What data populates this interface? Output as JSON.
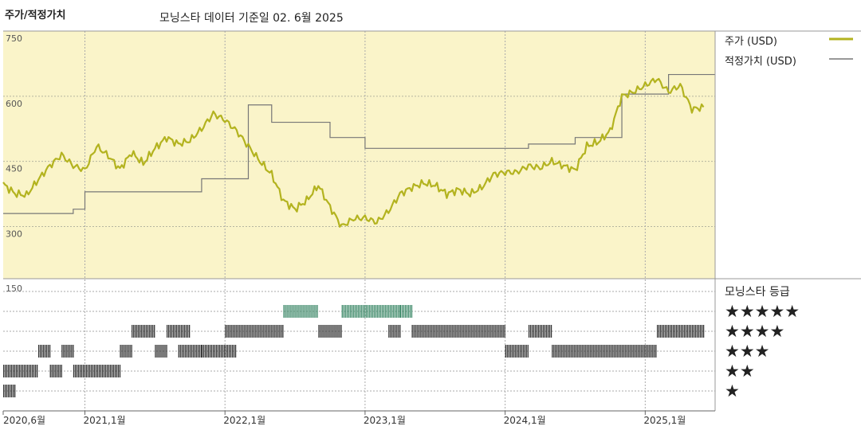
{
  "chart_data": {
    "type": "line",
    "title": "주가/적정가치",
    "subtitle": "모닝스타 데이터 기준일 02. 6월 2025",
    "x_ticks": [
      "2020,6월",
      "2021,1월",
      "2022,1월",
      "2023,1월",
      "2024,1월",
      "2025,1월"
    ],
    "x_range": [
      "2020-06",
      "2025-06"
    ],
    "y_ticks": [
      750,
      600,
      450,
      300
    ],
    "ylim": [
      180,
      750
    ],
    "grid": true,
    "legend_position": "right",
    "colors": {
      "price": "#b3b31f",
      "fair": "#777777",
      "panel": "#faf4c9",
      "star5": "#3f8a6a",
      "bars": "#333333"
    },
    "series": [
      {
        "name": "주가 (USD)",
        "x": [
          "2020-06",
          "2020-07",
          "2020-08",
          "2020-09",
          "2020-10",
          "2020-11",
          "2020-12",
          "2021-01",
          "2021-02",
          "2021-03",
          "2021-04",
          "2021-05",
          "2021-06",
          "2021-07",
          "2021-08",
          "2021-09",
          "2021-10",
          "2021-11",
          "2021-12",
          "2022-01",
          "2022-02",
          "2022-03",
          "2022-04",
          "2022-05",
          "2022-06",
          "2022-07",
          "2022-08",
          "2022-09",
          "2022-10",
          "2022-11",
          "2022-12",
          "2023-01",
          "2023-02",
          "2023-03",
          "2023-04",
          "2023-05",
          "2023-06",
          "2023-07",
          "2023-08",
          "2023-09",
          "2023-10",
          "2023-11",
          "2023-12",
          "2024-01",
          "2024-02",
          "2024-03",
          "2024-04",
          "2024-05",
          "2024-06",
          "2024-07",
          "2024-08",
          "2024-09",
          "2024-10",
          "2024-11",
          "2024-12",
          "2025-01",
          "2025-02",
          "2025-03",
          "2025-04",
          "2025-05",
          "2025-06"
        ],
        "values": [
          398,
          376,
          372,
          408,
          440,
          465,
          440,
          430,
          485,
          463,
          432,
          470,
          445,
          480,
          505,
          490,
          498,
          525,
          560,
          545,
          520,
          485,
          450,
          420,
          360,
          340,
          360,
          395,
          345,
          300,
          318,
          320,
          310,
          335,
          375,
          390,
          400,
          395,
          375,
          385,
          375,
          390,
          420,
          425,
          425,
          440,
          435,
          450,
          440,
          430,
          485,
          495,
          520,
          600,
          610,
          625,
          640,
          610,
          625,
          570,
          575
        ]
      },
      {
        "name": "적정가치 (USD)",
        "x": [
          "2020-06",
          "2020-09",
          "2020-12",
          "2021-01",
          "2021-08",
          "2021-11",
          "2021-12",
          "2022-03",
          "2022-05",
          "2022-10",
          "2023-01",
          "2023-12",
          "2024-01",
          "2024-03",
          "2024-05",
          "2024-07",
          "2024-08",
          "2024-10",
          "2024-11",
          "2025-02",
          "2025-03",
          "2025-06"
        ],
        "values": [
          330,
          330,
          340,
          380,
          380,
          410,
          410,
          580,
          540,
          505,
          480,
          480,
          480,
          490,
          490,
          505,
          505,
          505,
          605,
          605,
          650,
          650
        ]
      }
    ],
    "rating": {
      "label": "모닝스타 등급",
      "levels": [
        "★★★★★",
        "★★★★",
        "★★★",
        "★★",
        "★"
      ],
      "y_tick": 150,
      "segments": [
        {
          "stars": 1,
          "start": "2020-06",
          "end": "2020-06"
        },
        {
          "stars": 2,
          "start": "2020-06",
          "end": "2020-08"
        },
        {
          "stars": 3,
          "start": "2020-09",
          "end": "2020-09"
        },
        {
          "stars": 2,
          "start": "2020-10",
          "end": "2020-10"
        },
        {
          "stars": 3,
          "start": "2020-11",
          "end": "2020-11"
        },
        {
          "stars": 2,
          "start": "2020-12",
          "end": "2021-03"
        },
        {
          "stars": 3,
          "start": "2021-04",
          "end": "2021-04"
        },
        {
          "stars": 4,
          "start": "2021-05",
          "end": "2021-06"
        },
        {
          "stars": 3,
          "start": "2021-07",
          "end": "2021-07"
        },
        {
          "stars": 4,
          "start": "2021-08",
          "end": "2021-09"
        },
        {
          "stars": 3,
          "start": "2021-09",
          "end": "2021-10"
        },
        {
          "stars": 3,
          "start": "2021-11",
          "end": "2022-01"
        },
        {
          "stars": 4,
          "start": "2022-01",
          "end": "2022-05"
        },
        {
          "stars": 5,
          "start": "2022-06",
          "end": "2022-08"
        },
        {
          "stars": 4,
          "start": "2022-09",
          "end": "2022-10"
        },
        {
          "stars": 5,
          "start": "2022-11",
          "end": "2023-03"
        },
        {
          "stars": 4,
          "start": "2023-03",
          "end": "2023-03"
        },
        {
          "stars": 5,
          "start": "2023-04",
          "end": "2023-04"
        },
        {
          "stars": 4,
          "start": "2023-05",
          "end": "2023-12"
        },
        {
          "stars": 3,
          "start": "2024-01",
          "end": "2024-02"
        },
        {
          "stars": 4,
          "start": "2024-03",
          "end": "2024-04"
        },
        {
          "stars": 3,
          "start": "2024-05",
          "end": "2025-01"
        },
        {
          "stars": 4,
          "start": "2025-02",
          "end": "2025-05"
        }
      ]
    }
  }
}
